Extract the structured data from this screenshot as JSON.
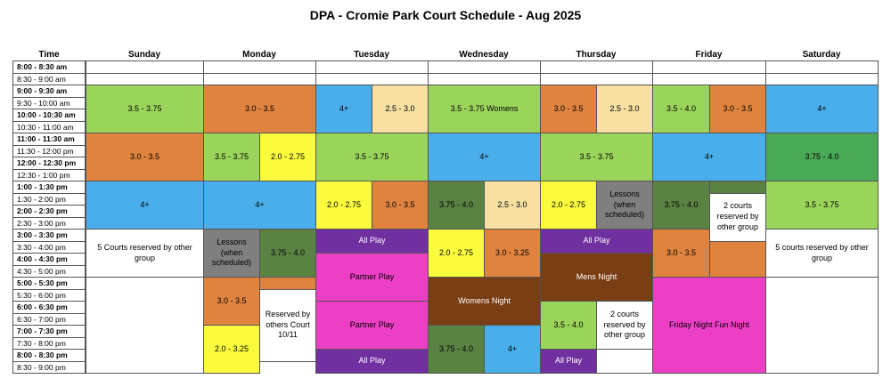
{
  "title": "DPA - Cromie Park Court Schedule - Aug 2025",
  "colors": {
    "green": "#9ad45a",
    "orange": "#e0833f",
    "blue": "#4aaeea",
    "tan": "#f8dfa2",
    "yellow": "#fbfb3d",
    "darkgreen": "#5a8243",
    "gray": "#7f7f7f",
    "purple": "#7030a0",
    "magenta": "#ec3fc6",
    "brown": "#7a3e15",
    "midgreen": "#4aa956",
    "white": "#ffffff"
  },
  "headers": [
    "Time",
    "Sunday",
    "Monday",
    "Tuesday",
    "Wednesday",
    "Thursday",
    "Friday",
    "Saturday"
  ],
  "times": [
    {
      "label": "8:00 - 8:30 am",
      "bold": true
    },
    {
      "label": "8:30 - 9:00 am",
      "bold": false
    },
    {
      "label": "9:00 - 9:30 am",
      "bold": true
    },
    {
      "label": "9:30 - 10:00 am",
      "bold": false
    },
    {
      "label": "10:00 - 10:30 am",
      "bold": true
    },
    {
      "label": "10:30 - 11:00 am",
      "bold": false
    },
    {
      "label": "11:00 - 11:30 am",
      "bold": true
    },
    {
      "label": "11:30 - 12:00 pm",
      "bold": false
    },
    {
      "label": "12:00 - 12:30 pm",
      "bold": true
    },
    {
      "label": "12:30 - 1:00 pm",
      "bold": false
    },
    {
      "label": "1:00 - 1:30 pm",
      "bold": true
    },
    {
      "label": "1:30 - 2:00 pm",
      "bold": false
    },
    {
      "label": "2:00 - 2:30 pm",
      "bold": true
    },
    {
      "label": "2:30 - 3:00 pm",
      "bold": false
    },
    {
      "label": "3:00 - 3:30 pm",
      "bold": true
    },
    {
      "label": "3:30 - 4:00 pm",
      "bold": false
    },
    {
      "label": "4:00 - 4:30 pm",
      "bold": true
    },
    {
      "label": "4:30 - 5:00 pm",
      "bold": false
    },
    {
      "label": "5:00 - 5:30 pm",
      "bold": true
    },
    {
      "label": "5:30 - 6:00 pm",
      "bold": false
    },
    {
      "label": "6:00 - 6:30 pm",
      "bold": true
    },
    {
      "label": "6:30 - 7:00 pm",
      "bold": false
    },
    {
      "label": "7:00 - 7:30 pm",
      "bold": true
    },
    {
      "label": "7:30 - 8:00 pm",
      "bold": false
    },
    {
      "label": "8:00 - 8:30 pm",
      "bold": true
    },
    {
      "label": "8:30 - 9:00 pm",
      "bold": false
    }
  ],
  "blocks": [
    {
      "day": 1,
      "start": 2,
      "span": 4,
      "text": "3.5 - 3.75",
      "color": "green",
      "sub": "full"
    },
    {
      "day": 1,
      "start": 6,
      "span": 4,
      "text": "3.0 - 3.5",
      "color": "orange",
      "sub": "full"
    },
    {
      "day": 1,
      "start": 10,
      "span": 4,
      "text": "4+",
      "color": "blue",
      "sub": "full"
    },
    {
      "day": 1,
      "start": 14,
      "span": 4,
      "text": "5 Courts reserved by other group",
      "color": "white",
      "sub": "full"
    },
    {
      "day": 2,
      "start": 2,
      "span": 4,
      "text": "3.0 - 3.5",
      "color": "orange",
      "sub": "full"
    },
    {
      "day": 2,
      "start": 6,
      "span": 4,
      "text": "3.5 - 3.75",
      "color": "green",
      "sub": "left"
    },
    {
      "day": 2,
      "start": 6,
      "span": 4,
      "text": "2.0 - 2.75",
      "color": "yellow",
      "sub": "right"
    },
    {
      "day": 2,
      "start": 10,
      "span": 4,
      "text": "4+",
      "color": "blue",
      "sub": "full"
    },
    {
      "day": 2,
      "start": 14,
      "span": 4,
      "text": "Lessons (when scheduled)",
      "color": "gray",
      "sub": "left"
    },
    {
      "day": 2,
      "start": 14,
      "span": 4,
      "text": "3.75 - 4.0",
      "color": "darkgreen",
      "sub": "right"
    },
    {
      "day": 2,
      "start": 18,
      "span": 4,
      "text": "3.0 - 3.5",
      "color": "orange",
      "sub": "left"
    },
    {
      "day": 2,
      "start": 18,
      "span": 1,
      "text": "",
      "color": "orange",
      "sub": "right"
    },
    {
      "day": 2,
      "start": 19,
      "span": 6,
      "text": "Reserved by others Court 10/11",
      "color": "white",
      "sub": "right"
    },
    {
      "day": 2,
      "start": 22,
      "span": 4,
      "text": "2.0 - 3.25",
      "color": "yellow",
      "sub": "left"
    },
    {
      "day": 3,
      "start": 2,
      "span": 4,
      "text": "4+",
      "color": "blue",
      "sub": "left"
    },
    {
      "day": 3,
      "start": 2,
      "span": 4,
      "text": "2.5 - 3.0",
      "color": "tan",
      "sub": "right"
    },
    {
      "day": 3,
      "start": 6,
      "span": 4,
      "text": "3.5 - 3.75",
      "color": "green",
      "sub": "full"
    },
    {
      "day": 3,
      "start": 10,
      "span": 4,
      "text": "2.0 - 2.75",
      "color": "yellow",
      "sub": "left"
    },
    {
      "day": 3,
      "start": 10,
      "span": 4,
      "text": "3.0 - 3.5",
      "color": "orange",
      "sub": "right"
    },
    {
      "day": 3,
      "start": 14,
      "span": 2,
      "text": "All Play",
      "color": "purple",
      "sub": "full",
      "light": true
    },
    {
      "day": 3,
      "start": 16,
      "span": 4,
      "text": "Partner Play",
      "color": "magenta",
      "sub": "full"
    },
    {
      "day": 3,
      "start": 20,
      "span": 4,
      "text": "Partner Play",
      "color": "magenta",
      "sub": "full"
    },
    {
      "day": 3,
      "start": 24,
      "span": 2,
      "text": "All Play",
      "color": "purple",
      "sub": "full",
      "light": true
    },
    {
      "day": 4,
      "start": 2,
      "span": 4,
      "text": "3.5 - 3.75 Womens",
      "color": "green",
      "sub": "full"
    },
    {
      "day": 4,
      "start": 6,
      "span": 4,
      "text": "4+",
      "color": "blue",
      "sub": "full"
    },
    {
      "day": 4,
      "start": 10,
      "span": 4,
      "text": "3.75 - 4.0",
      "color": "darkgreen",
      "sub": "left"
    },
    {
      "day": 4,
      "start": 10,
      "span": 4,
      "text": "2.5 - 3.0",
      "color": "tan",
      "sub": "right"
    },
    {
      "day": 4,
      "start": 14,
      "span": 4,
      "text": "2.0 - 2.75",
      "color": "yellow",
      "sub": "left"
    },
    {
      "day": 4,
      "start": 14,
      "span": 4,
      "text": "3.0 - 3.25",
      "color": "orange",
      "sub": "right"
    },
    {
      "day": 4,
      "start": 18,
      "span": 4,
      "text": "Womens Night",
      "color": "brown",
      "sub": "full"
    },
    {
      "day": 4,
      "start": 22,
      "span": 4,
      "text": "3.75 - 4.0",
      "color": "darkgreen",
      "sub": "left"
    },
    {
      "day": 4,
      "start": 22,
      "span": 4,
      "text": "4+",
      "color": "blue",
      "sub": "right"
    },
    {
      "day": 5,
      "start": 2,
      "span": 4,
      "text": "3.0 - 3.5",
      "color": "orange",
      "sub": "left"
    },
    {
      "day": 5,
      "start": 2,
      "span": 4,
      "text": "2.5 - 3.0",
      "color": "tan",
      "sub": "right"
    },
    {
      "day": 5,
      "start": 6,
      "span": 4,
      "text": "3.5 - 3.75",
      "color": "green",
      "sub": "full"
    },
    {
      "day": 5,
      "start": 10,
      "span": 4,
      "text": "2.0 - 2.75",
      "color": "yellow",
      "sub": "left"
    },
    {
      "day": 5,
      "start": 10,
      "span": 4,
      "text": "Lessons (when scheduled)",
      "color": "gray",
      "sub": "right"
    },
    {
      "day": 5,
      "start": 14,
      "span": 2,
      "text": "All Play",
      "color": "purple",
      "sub": "full",
      "light": true
    },
    {
      "day": 5,
      "start": 16,
      "span": 4,
      "text": "Mens Night",
      "color": "brown",
      "sub": "full"
    },
    {
      "day": 5,
      "start": 20,
      "span": 4,
      "text": "3.5 - 4.0",
      "color": "green",
      "sub": "left"
    },
    {
      "day": 5,
      "start": 20,
      "span": 4,
      "text": "2 courts reserved by other group",
      "color": "white",
      "sub": "right"
    },
    {
      "day": 5,
      "start": 24,
      "span": 2,
      "text": "All Play",
      "color": "purple",
      "sub": "left",
      "light": true
    },
    {
      "day": 5,
      "start": 24,
      "span": 2,
      "text": "",
      "color": "white",
      "sub": "right"
    },
    {
      "day": 6,
      "start": 2,
      "span": 4,
      "text": "3.5 - 4.0",
      "color": "green",
      "sub": "left"
    },
    {
      "day": 6,
      "start": 2,
      "span": 4,
      "text": "3.0 - 3.5",
      "color": "orange",
      "sub": "right"
    },
    {
      "day": 6,
      "start": 6,
      "span": 4,
      "text": "4+",
      "color": "blue",
      "sub": "full"
    },
    {
      "day": 6,
      "start": 10,
      "span": 4,
      "text": "3.75 - 4.0",
      "color": "darkgreen",
      "sub": "left"
    },
    {
      "day": 6,
      "start": 10,
      "span": 1,
      "text": "",
      "color": "darkgreen",
      "sub": "right"
    },
    {
      "day": 6,
      "start": 11,
      "span": 4,
      "text": "2 courts reserved by other group",
      "color": "white",
      "sub": "right"
    },
    {
      "day": 6,
      "start": 14,
      "span": 4,
      "text": "3.0 - 3.5",
      "color": "orange",
      "sub": "left"
    },
    {
      "day": 6,
      "start": 15,
      "span": 3,
      "text": "",
      "color": "orange",
      "sub": "right"
    },
    {
      "day": 6,
      "start": 18,
      "span": 8,
      "text": "Friday Night Fun Night",
      "color": "magenta",
      "sub": "full"
    },
    {
      "day": 7,
      "start": 2,
      "span": 4,
      "text": "4+",
      "color": "blue",
      "sub": "full"
    },
    {
      "day": 7,
      "start": 6,
      "span": 4,
      "text": "3.75 - 4.0",
      "color": "midgreen",
      "sub": "full"
    },
    {
      "day": 7,
      "start": 10,
      "span": 4,
      "text": "3.5 - 3.75",
      "color": "green",
      "sub": "full"
    },
    {
      "day": 7,
      "start": 14,
      "span": 4,
      "text": "5 courts  reserved by other group",
      "color": "white",
      "sub": "full"
    }
  ]
}
